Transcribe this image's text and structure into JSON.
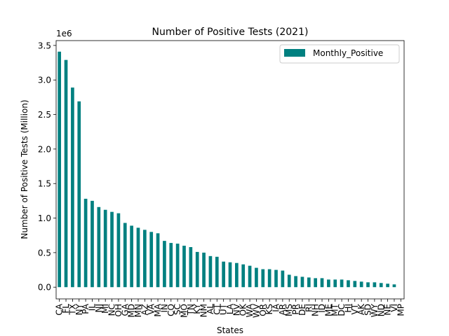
{
  "chart_data": {
    "type": "bar",
    "title": "Number of Positive Tests (2021)",
    "xlabel": "States",
    "ylabel": "Number of Positive Tests (Million)",
    "y_offset_label": "1e6",
    "ylim": [
      -0.17,
      3.57
    ],
    "y_ticks": [
      0.0,
      0.5,
      1.0,
      1.5,
      2.0,
      2.5,
      3.0,
      3.5
    ],
    "y_tick_labels": [
      "0.0",
      "0.5",
      "1.0",
      "1.5",
      "2.0",
      "2.5",
      "3.0",
      "3.5"
    ],
    "legend_position": "top-right",
    "grid": false,
    "bar_color": "#008080",
    "categories": [
      "CA",
      "FL",
      "TX",
      "NY",
      "PA",
      "IL",
      "NJ",
      "MI",
      "NC",
      "OH",
      "GA",
      "MD",
      "MN",
      "AZ",
      "VA",
      "MA",
      "IN",
      "CO",
      "SC",
      "MO",
      "TN",
      "KY",
      "NM",
      "AL",
      "CT",
      "UT",
      "LA",
      "NV",
      "OK",
      "WA",
      "WV",
      "OR",
      "KS",
      "IA",
      "AR",
      "MS",
      "PR",
      "DE",
      "RI",
      "NH",
      "ID",
      "ME",
      "MT",
      "DC",
      "HI",
      "VT",
      "AK",
      "SD",
      "WY",
      "ND",
      "NE",
      "VI",
      "MP"
    ],
    "series": [
      {
        "name": "Monthly_Positive",
        "values": [
          3.41,
          3.29,
          2.89,
          2.69,
          1.28,
          1.25,
          1.16,
          1.12,
          1.09,
          1.07,
          0.93,
          0.89,
          0.86,
          0.83,
          0.8,
          0.78,
          0.67,
          0.64,
          0.63,
          0.6,
          0.58,
          0.51,
          0.5,
          0.45,
          0.44,
          0.37,
          0.36,
          0.35,
          0.33,
          0.31,
          0.28,
          0.26,
          0.26,
          0.25,
          0.24,
          0.18,
          0.16,
          0.15,
          0.14,
          0.13,
          0.13,
          0.11,
          0.11,
          0.11,
          0.1,
          0.09,
          0.08,
          0.07,
          0.07,
          0.06,
          0.05,
          0.04,
          0.0
        ]
      }
    ]
  }
}
